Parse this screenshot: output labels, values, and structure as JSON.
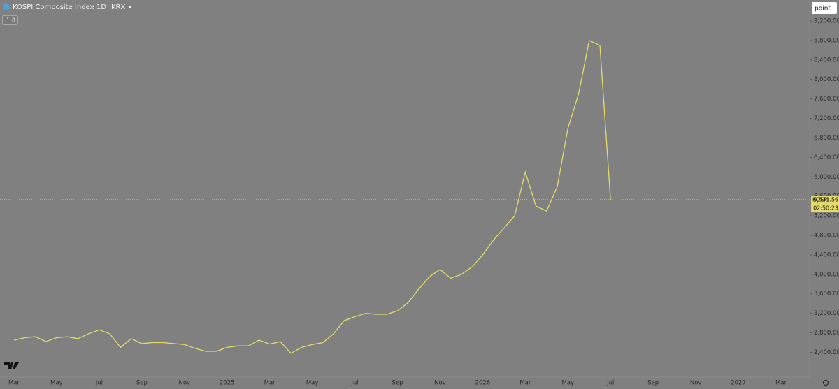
{
  "chart_data": {
    "type": "line",
    "title": "KOSPI Composite Index",
    "interval": "1D",
    "exchange": "KRX",
    "indicator_count": "8",
    "unit_label": "point",
    "categories": [
      "Mar",
      null,
      null,
      null,
      "May",
      null,
      null,
      null,
      "Jul",
      null,
      null,
      null,
      "Sep",
      null,
      null,
      null,
      "Nov",
      null,
      null,
      null,
      "2025",
      null,
      null,
      null,
      "Mar",
      null,
      null,
      null,
      "May",
      null,
      null,
      null,
      "Jul",
      null,
      null,
      null,
      "Sep",
      null,
      null,
      null,
      "Nov",
      null,
      null,
      null,
      "2026",
      null,
      null,
      null,
      "Mar",
      null,
      null,
      null,
      "May",
      null,
      null,
      null,
      "Jul",
      null,
      null,
      null,
      "Sep",
      null,
      null,
      null,
      "Nov",
      null,
      null,
      null,
      "2027",
      null,
      null,
      null,
      "Mar"
    ],
    "series": [
      {
        "name": "KOSPI",
        "color": "#e3dc6a",
        "values": [
          2650,
          2700,
          2720,
          2620,
          2700,
          2720,
          2680,
          2780,
          2860,
          2780,
          2500,
          2680,
          2580,
          2600,
          2600,
          2580,
          2560,
          2480,
          2420,
          2420,
          2500,
          2530,
          2530,
          2650,
          2570,
          2620,
          2380,
          2500,
          2560,
          2600,
          2780,
          3050,
          3130,
          3200,
          3180,
          3180,
          3250,
          3420,
          3700,
          3950,
          4100,
          3920,
          4000,
          4150,
          4400,
          4700,
          4950,
          5200,
          6100,
          5400,
          5300,
          5800,
          7000,
          7700,
          8800,
          8700,
          5531.56,
          null,
          null,
          null,
          null,
          null,
          null,
          null,
          null,
          null,
          null,
          null,
          null,
          null,
          null,
          null,
          null
        ],
        "value_label": "5,531.56",
        "countdown": "02:50:23"
      }
    ],
    "ylim": [
      1890,
      9630
    ],
    "yticks": [
      {
        "value": 2400,
        "label": "2,400.00"
      },
      {
        "value": 2800,
        "label": "2,800.00"
      },
      {
        "value": 3200,
        "label": "3,200.00"
      },
      {
        "value": 3600,
        "label": "3,600.00"
      },
      {
        "value": 4000,
        "label": "4,000.00"
      },
      {
        "value": 4400,
        "label": "4,400.00"
      },
      {
        "value": 4800,
        "label": "4,800.00"
      },
      {
        "value": 5200,
        "label": "5,200.00"
      },
      {
        "value": 5600,
        "label": "5,600.00"
      },
      {
        "value": 6000,
        "label": "6,000.00"
      },
      {
        "value": 6400,
        "label": "6,400.00"
      },
      {
        "value": 6800,
        "label": "6,800.00"
      },
      {
        "value": 7200,
        "label": "7,200.00"
      },
      {
        "value": 7600,
        "label": "7,600.00"
      },
      {
        "value": 8000,
        "label": "8,000.00"
      },
      {
        "value": 8400,
        "label": "8,400.00"
      },
      {
        "value": 8800,
        "label": "8,800.00"
      },
      {
        "value": 9200,
        "label": "9,200.00"
      }
    ],
    "grid": false
  }
}
